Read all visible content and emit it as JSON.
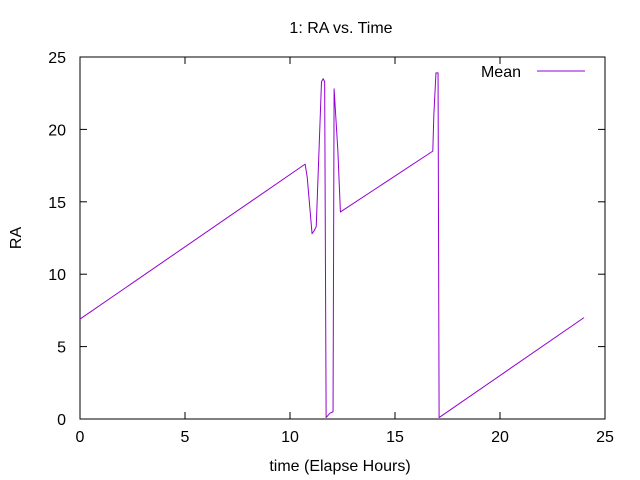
{
  "chart_data": {
    "type": "line",
    "title": "1: RA vs. Time",
    "xlabel": "time (Elapse Hours)",
    "ylabel": "RA",
    "xlim": [
      0,
      25
    ],
    "ylim": [
      0,
      25
    ],
    "x_ticks": [
      0,
      5,
      10,
      15,
      20,
      25
    ],
    "y_ticks": [
      0,
      5,
      10,
      15,
      20,
      25
    ],
    "x_tick_labels": [
      "0",
      "5",
      "10",
      "15",
      "20",
      "25"
    ],
    "y_tick_labels": [
      "0",
      "5",
      "10",
      "15",
      "20",
      "25"
    ],
    "grid": false,
    "legend_position": "top-right",
    "series": [
      {
        "name": "Mean",
        "color": "#9400d3",
        "x": [
          0,
          10.72,
          10.82,
          11.05,
          11.15,
          11.25,
          11.38,
          11.5,
          11.58,
          11.65,
          11.72,
          11.9,
          12.05,
          12.1,
          12.28,
          12.4,
          16.8,
          16.85,
          16.95,
          17.05,
          17.1,
          24.0
        ],
        "y": [
          6.9,
          17.6,
          16.7,
          12.8,
          13.0,
          13.3,
          18.5,
          23.3,
          23.5,
          23.3,
          0.1,
          0.4,
          0.5,
          22.8,
          18.5,
          14.3,
          18.5,
          21.0,
          23.9,
          23.9,
          0.1,
          7.0
        ]
      }
    ]
  }
}
